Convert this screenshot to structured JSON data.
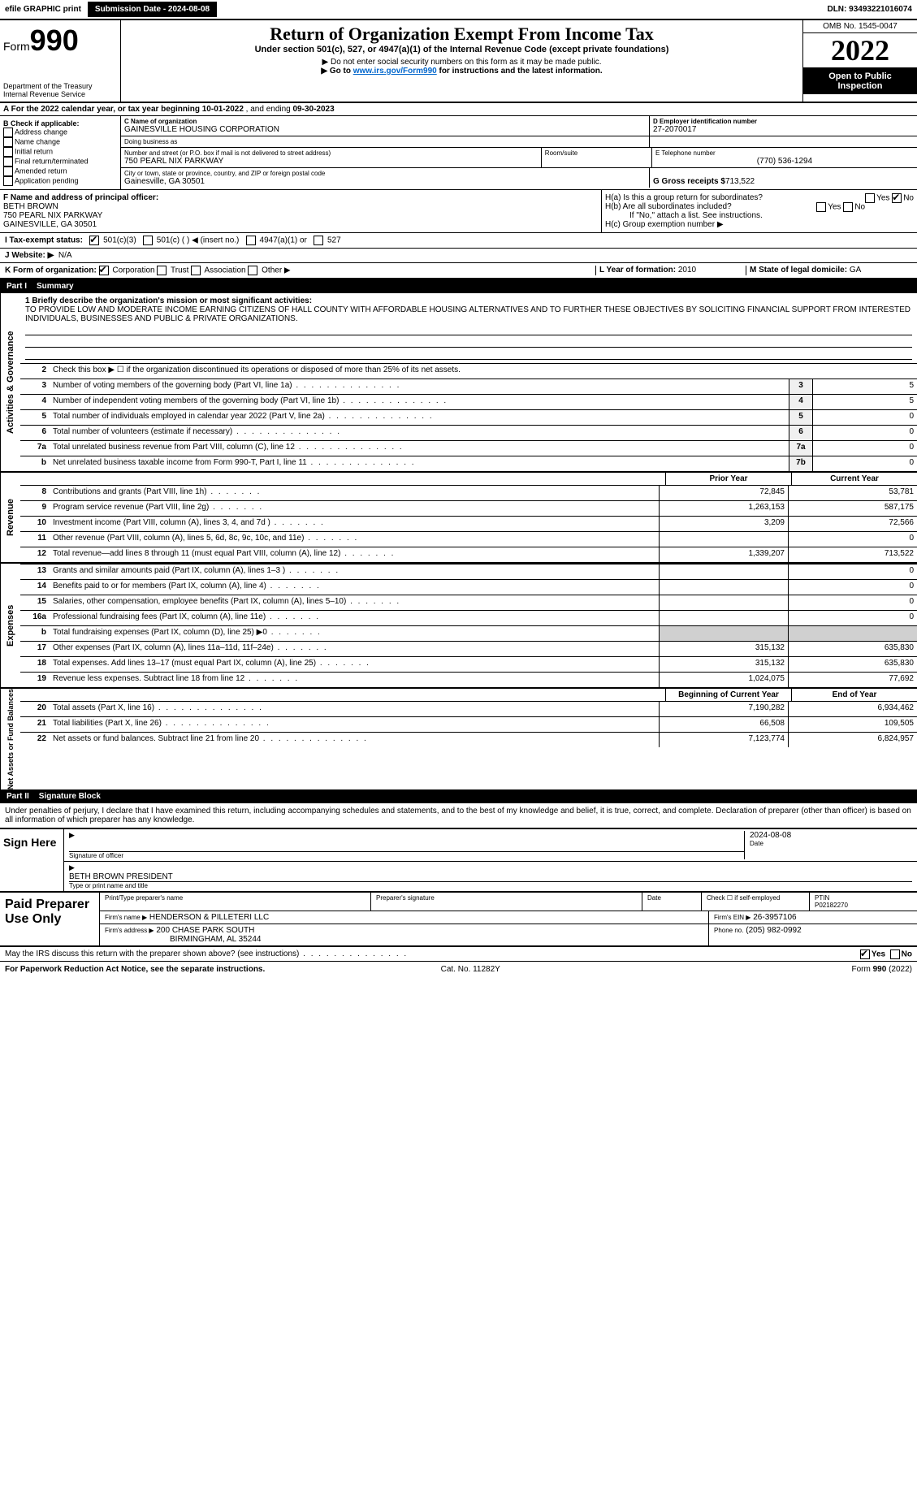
{
  "colors": {
    "black": "#000000",
    "white": "#ffffff",
    "link": "#0066cc",
    "shade": "#d0d0d0"
  },
  "topbar": {
    "efile": "efile GRAPHIC print",
    "submission": "Submission Date - 2024-08-08",
    "dln": "DLN: 93493221016074"
  },
  "header": {
    "form_prefix": "Form",
    "form_no": "990",
    "dept": "Department of the Treasury",
    "irs": "Internal Revenue Service",
    "title": "Return of Organization Exempt From Income Tax",
    "subtitle": "Under section 501(c), 527, or 4947(a)(1) of the Internal Revenue Code (except private foundations)",
    "note1": "▶ Do not enter social security numbers on this form as it may be made public.",
    "note2_pre": "▶ Go to ",
    "note2_link": "www.irs.gov/Form990",
    "note2_post": " for instructions and the latest information.",
    "omb": "OMB No. 1545-0047",
    "year": "2022",
    "open": "Open to Public Inspection"
  },
  "rowA": {
    "text_pre": "A For the 2022 calendar year, or tax year beginning ",
    "begin": "10-01-2022",
    "mid": "  , and ending ",
    "end": "09-30-2023"
  },
  "boxB": {
    "heading": "B Check if applicable:",
    "items": [
      "Address change",
      "Name change",
      "Initial return",
      "Final return/terminated",
      "Amended return",
      "Application pending"
    ]
  },
  "boxC": {
    "label_name": "C Name of organization",
    "org": "GAINESVILLE HOUSING CORPORATION",
    "dba_label": "Doing business as",
    "dba": "",
    "addr_label": "Number and street (or P.O. box if mail is not delivered to street address)",
    "room_label": "Room/suite",
    "addr": "750 PEARL NIX PARKWAY",
    "city_label": "City or town, state or province, country, and ZIP or foreign postal code",
    "city": "Gainesville, GA  30501"
  },
  "boxD": {
    "label": "D Employer identification number",
    "ein": "27-2070017"
  },
  "boxE": {
    "label": "E Telephone number",
    "phone": "(770) 536-1294"
  },
  "boxG": {
    "label": "G Gross receipts $",
    "amount": "713,522"
  },
  "boxF": {
    "label": "F Name and address of principal officer:",
    "name": "BETH BROWN",
    "addr1": "750 PEARL NIX PARKWAY",
    "addr2": "GAINESVILLE, GA  30501"
  },
  "boxH": {
    "a_label": "H(a)  Is this a group return for subordinates?",
    "a_no_checked": true,
    "b_label": "H(b)  Are all subordinates included?",
    "b_note": "If \"No,\" attach a list. See instructions.",
    "c_label": "H(c)  Group exemption number ▶"
  },
  "rowI": {
    "label": "I  Tax-exempt status:",
    "opt1": "501(c)(3)",
    "opt2": "501(c) (   ) ◀ (insert no.)",
    "opt3": "4947(a)(1) or",
    "opt4": "527"
  },
  "rowJ": {
    "label": "J  Website: ▶",
    "val": "N/A"
  },
  "rowK": {
    "label": "K Form of organization:",
    "opts": [
      "Corporation",
      "Trust",
      "Association",
      "Other ▶"
    ]
  },
  "rowL": {
    "label": "L Year of formation:",
    "val": "2010"
  },
  "rowM": {
    "label": "M State of legal domicile:",
    "val": "GA"
  },
  "part1": {
    "header_num": "Part I",
    "header_title": "Summary",
    "side1": "Activities & Governance",
    "side2": "Revenue",
    "side3": "Expenses",
    "side4": "Net Assets or Fund Balances",
    "l1_label": "1  Briefly describe the organization's mission or most significant activities:",
    "l1_text": "TO PROVIDE LOW AND MODERATE INCOME EARNING CITIZENS OF HALL COUNTY WITH AFFORDABLE HOUSING ALTERNATIVES AND TO FURTHER THESE OBJECTIVES BY SOLICITING FINANCIAL SUPPORT FROM INTERESTED INDIVIDUALS, BUSINESSES AND PUBLIC & PRIVATE ORGANIZATIONS.",
    "l2": "Check this box ▶ ☐ if the organization discontinued its operations or disposed of more than 25% of its net assets.",
    "lines_gov": [
      {
        "n": "3",
        "t": "Number of voting members of the governing body (Part VI, line 1a)",
        "b": "3",
        "v": "5"
      },
      {
        "n": "4",
        "t": "Number of independent voting members of the governing body (Part VI, line 1b)",
        "b": "4",
        "v": "5"
      },
      {
        "n": "5",
        "t": "Total number of individuals employed in calendar year 2022 (Part V, line 2a)",
        "b": "5",
        "v": "0"
      },
      {
        "n": "6",
        "t": "Total number of volunteers (estimate if necessary)",
        "b": "6",
        "v": "0"
      },
      {
        "n": "7a",
        "t": "Total unrelated business revenue from Part VIII, column (C), line 12",
        "b": "7a",
        "v": "0"
      },
      {
        "n": "b",
        "t": "Net unrelated business taxable income from Form 990-T, Part I, line 11",
        "b": "7b",
        "v": "0"
      }
    ],
    "col_prior": "Prior Year",
    "col_current": "Current Year",
    "rev": [
      {
        "n": "8",
        "t": "Contributions and grants (Part VIII, line 1h)",
        "p": "72,845",
        "c": "53,781"
      },
      {
        "n": "9",
        "t": "Program service revenue (Part VIII, line 2g)",
        "p": "1,263,153",
        "c": "587,175"
      },
      {
        "n": "10",
        "t": "Investment income (Part VIII, column (A), lines 3, 4, and 7d )",
        "p": "3,209",
        "c": "72,566"
      },
      {
        "n": "11",
        "t": "Other revenue (Part VIII, column (A), lines 5, 6d, 8c, 9c, 10c, and 11e)",
        "p": "",
        "c": "0"
      },
      {
        "n": "12",
        "t": "Total revenue—add lines 8 through 11 (must equal Part VIII, column (A), line 12)",
        "p": "1,339,207",
        "c": "713,522"
      }
    ],
    "exp": [
      {
        "n": "13",
        "t": "Grants and similar amounts paid (Part IX, column (A), lines 1–3 )",
        "p": "",
        "c": "0"
      },
      {
        "n": "14",
        "t": "Benefits paid to or for members (Part IX, column (A), line 4)",
        "p": "",
        "c": "0"
      },
      {
        "n": "15",
        "t": "Salaries, other compensation, employee benefits (Part IX, column (A), lines 5–10)",
        "p": "",
        "c": "0"
      },
      {
        "n": "16a",
        "t": "Professional fundraising fees (Part IX, column (A), line 11e)",
        "p": "",
        "c": "0"
      },
      {
        "n": "b",
        "t": "Total fundraising expenses (Part IX, column (D), line 25) ▶0",
        "p": "sh",
        "c": "sh"
      },
      {
        "n": "17",
        "t": "Other expenses (Part IX, column (A), lines 11a–11d, 11f–24e)",
        "p": "315,132",
        "c": "635,830"
      },
      {
        "n": "18",
        "t": "Total expenses. Add lines 13–17 (must equal Part IX, column (A), line 25)",
        "p": "315,132",
        "c": "635,830"
      },
      {
        "n": "19",
        "t": "Revenue less expenses. Subtract line 18 from line 12",
        "p": "1,024,075",
        "c": "77,692"
      }
    ],
    "col_begin": "Beginning of Current Year",
    "col_end": "End of Year",
    "net": [
      {
        "n": "20",
        "t": "Total assets (Part X, line 16)",
        "p": "7,190,282",
        "c": "6,934,462"
      },
      {
        "n": "21",
        "t": "Total liabilities (Part X, line 26)",
        "p": "66,508",
        "c": "109,505"
      },
      {
        "n": "22",
        "t": "Net assets or fund balances. Subtract line 21 from line 20",
        "p": "7,123,774",
        "c": "6,824,957"
      }
    ]
  },
  "part2": {
    "header_num": "Part II",
    "header_title": "Signature Block",
    "penalties": "Under penalties of perjury, I declare that I have examined this return, including accompanying schedules and statements, and to the best of my knowledge and belief, it is true, correct, and complete. Declaration of preparer (other than officer) is based on all information of which preparer has any knowledge.",
    "sign_here": "Sign Here",
    "sig_officer": "Signature of officer",
    "sig_date": "Date",
    "date_val": "2024-08-08",
    "typed_name": "BETH BROWN  PRESIDENT",
    "typed_label": "Type or print name and title",
    "paid_label": "Paid Preparer Use Only",
    "pp_headers": [
      "Print/Type preparer's name",
      "Preparer's signature",
      "Date"
    ],
    "pp_check": "Check ☐ if self-employed",
    "ptin_label": "PTIN",
    "ptin": "P02182270",
    "firm_name_label": "Firm's name    ▶",
    "firm_name": "HENDERSON & PILLETERI LLC",
    "firm_ein_label": "Firm's EIN ▶",
    "firm_ein": "26-3957106",
    "firm_addr_label": "Firm's address ▶",
    "firm_addr1": "200 CHASE PARK SOUTH",
    "firm_addr2": "BIRMINGHAM, AL  35244",
    "phone_label": "Phone no.",
    "phone": "(205) 982-0992",
    "discuss": "May the IRS discuss this return with the preparer shown above? (see instructions)",
    "discuss_yes_checked": true
  },
  "footer": {
    "left": "For Paperwork Reduction Act Notice, see the separate instructions.",
    "mid": "Cat. No. 11282Y",
    "right": "Form 990 (2022)"
  }
}
